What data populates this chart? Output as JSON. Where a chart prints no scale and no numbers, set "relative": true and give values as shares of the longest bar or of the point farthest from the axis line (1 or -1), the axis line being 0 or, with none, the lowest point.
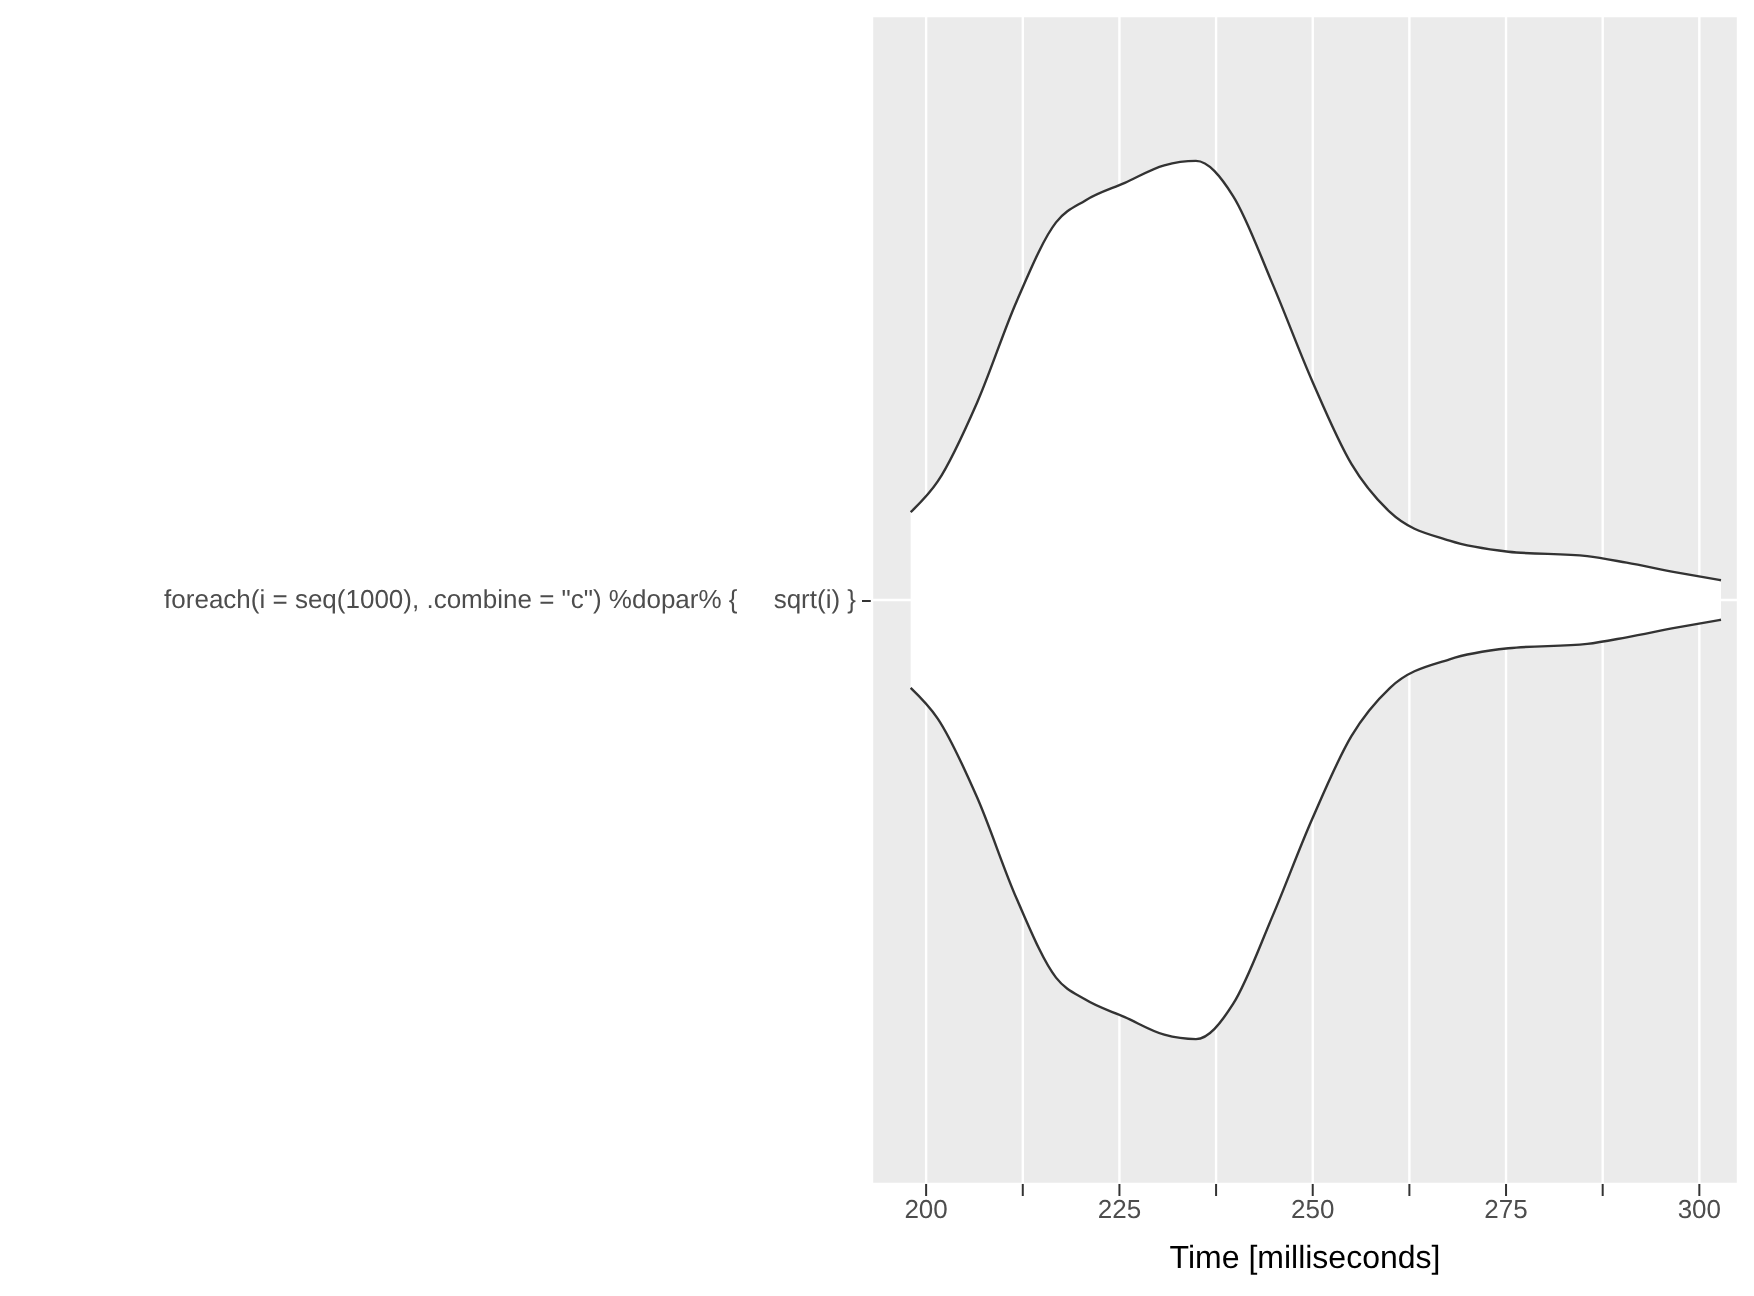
{
  "chart_data": {
    "type": "area",
    "relative": true,
    "xlabel": "Time [milliseconds]",
    "xlim": [
      193,
      305
    ],
    "xticks": [
      200,
      {
        "value": 212.5,
        "label": null
      },
      225,
      {
        "value": 237.5,
        "label": null
      },
      250,
      {
        "value": 262.5,
        "label": null
      },
      275,
      {
        "value": 287.5,
        "label": null
      },
      300
    ],
    "grid": true,
    "x": [
      198,
      201.5,
      206.6,
      211.7,
      216.8,
      220.6,
      225.7,
      230.8,
      234.9,
      239.7,
      244.8,
      249.9,
      255,
      260,
      267.7,
      275.3,
      285.5,
      290.6,
      297,
      302.8
    ],
    "series": [
      {
        "name": "foreach(i = seq(1000), .combine = \"c\") %dopar% {     sqrt(i) }",
        "color": "#333333",
        "values": [
          0.2,
          0.27,
          0.45,
          0.68,
          0.86,
          0.91,
          0.95,
          0.99,
          1,
          0.92,
          0.72,
          0.5,
          0.31,
          0.2,
          0.135,
          0.11,
          0.1,
          0.085,
          0.063,
          0.045
        ]
      },
      {
        "color": "#333333",
        "values": [
          -0.2,
          -0.27,
          -0.45,
          -0.68,
          -0.86,
          -0.91,
          -0.95,
          -0.99,
          -1,
          -0.92,
          -0.72,
          -0.5,
          -0.31,
          -0.2,
          -0.135,
          -0.11,
          -0.1,
          -0.085,
          -0.063,
          -0.045
        ]
      }
    ]
  }
}
